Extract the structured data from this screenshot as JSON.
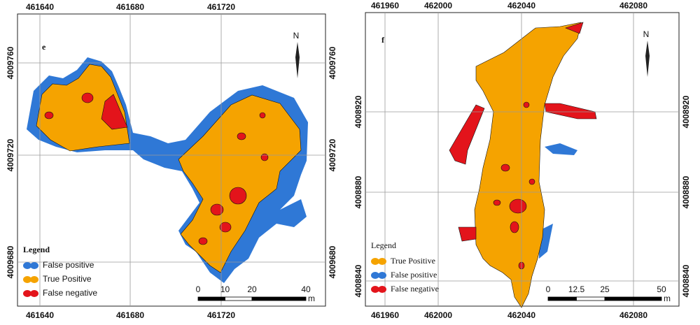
{
  "panels": [
    {
      "label": "e",
      "x_labels": [
        461640,
        461680,
        461720
      ],
      "y_labels": [
        4009760,
        4009720,
        4009680
      ],
      "north": "N",
      "legend": {
        "title": "Legend",
        "items": [
          {
            "label": "False positive",
            "color": "#2f78d6"
          },
          {
            "label": "True Positive",
            "color": "#f5a300"
          },
          {
            "label": "False negative",
            "color": "#e3141b"
          }
        ]
      },
      "scale": {
        "ticks": [
          0,
          10,
          20,
          40
        ],
        "unit": "m"
      }
    },
    {
      "label": "f",
      "x_labels": [
        461960,
        462000,
        462040,
        462080
      ],
      "y_labels": [
        4008920,
        4008880,
        4008840
      ],
      "north": "N",
      "legend": {
        "title": "Legend",
        "items": [
          {
            "label": "True Positive",
            "color": "#f5a300"
          },
          {
            "label": "False positive",
            "color": "#2f78d6"
          },
          {
            "label": "False negative",
            "color": "#e3141b"
          }
        ]
      },
      "scale": {
        "ticks": [
          0,
          12.5,
          25,
          50
        ],
        "unit": "m"
      }
    }
  ]
}
